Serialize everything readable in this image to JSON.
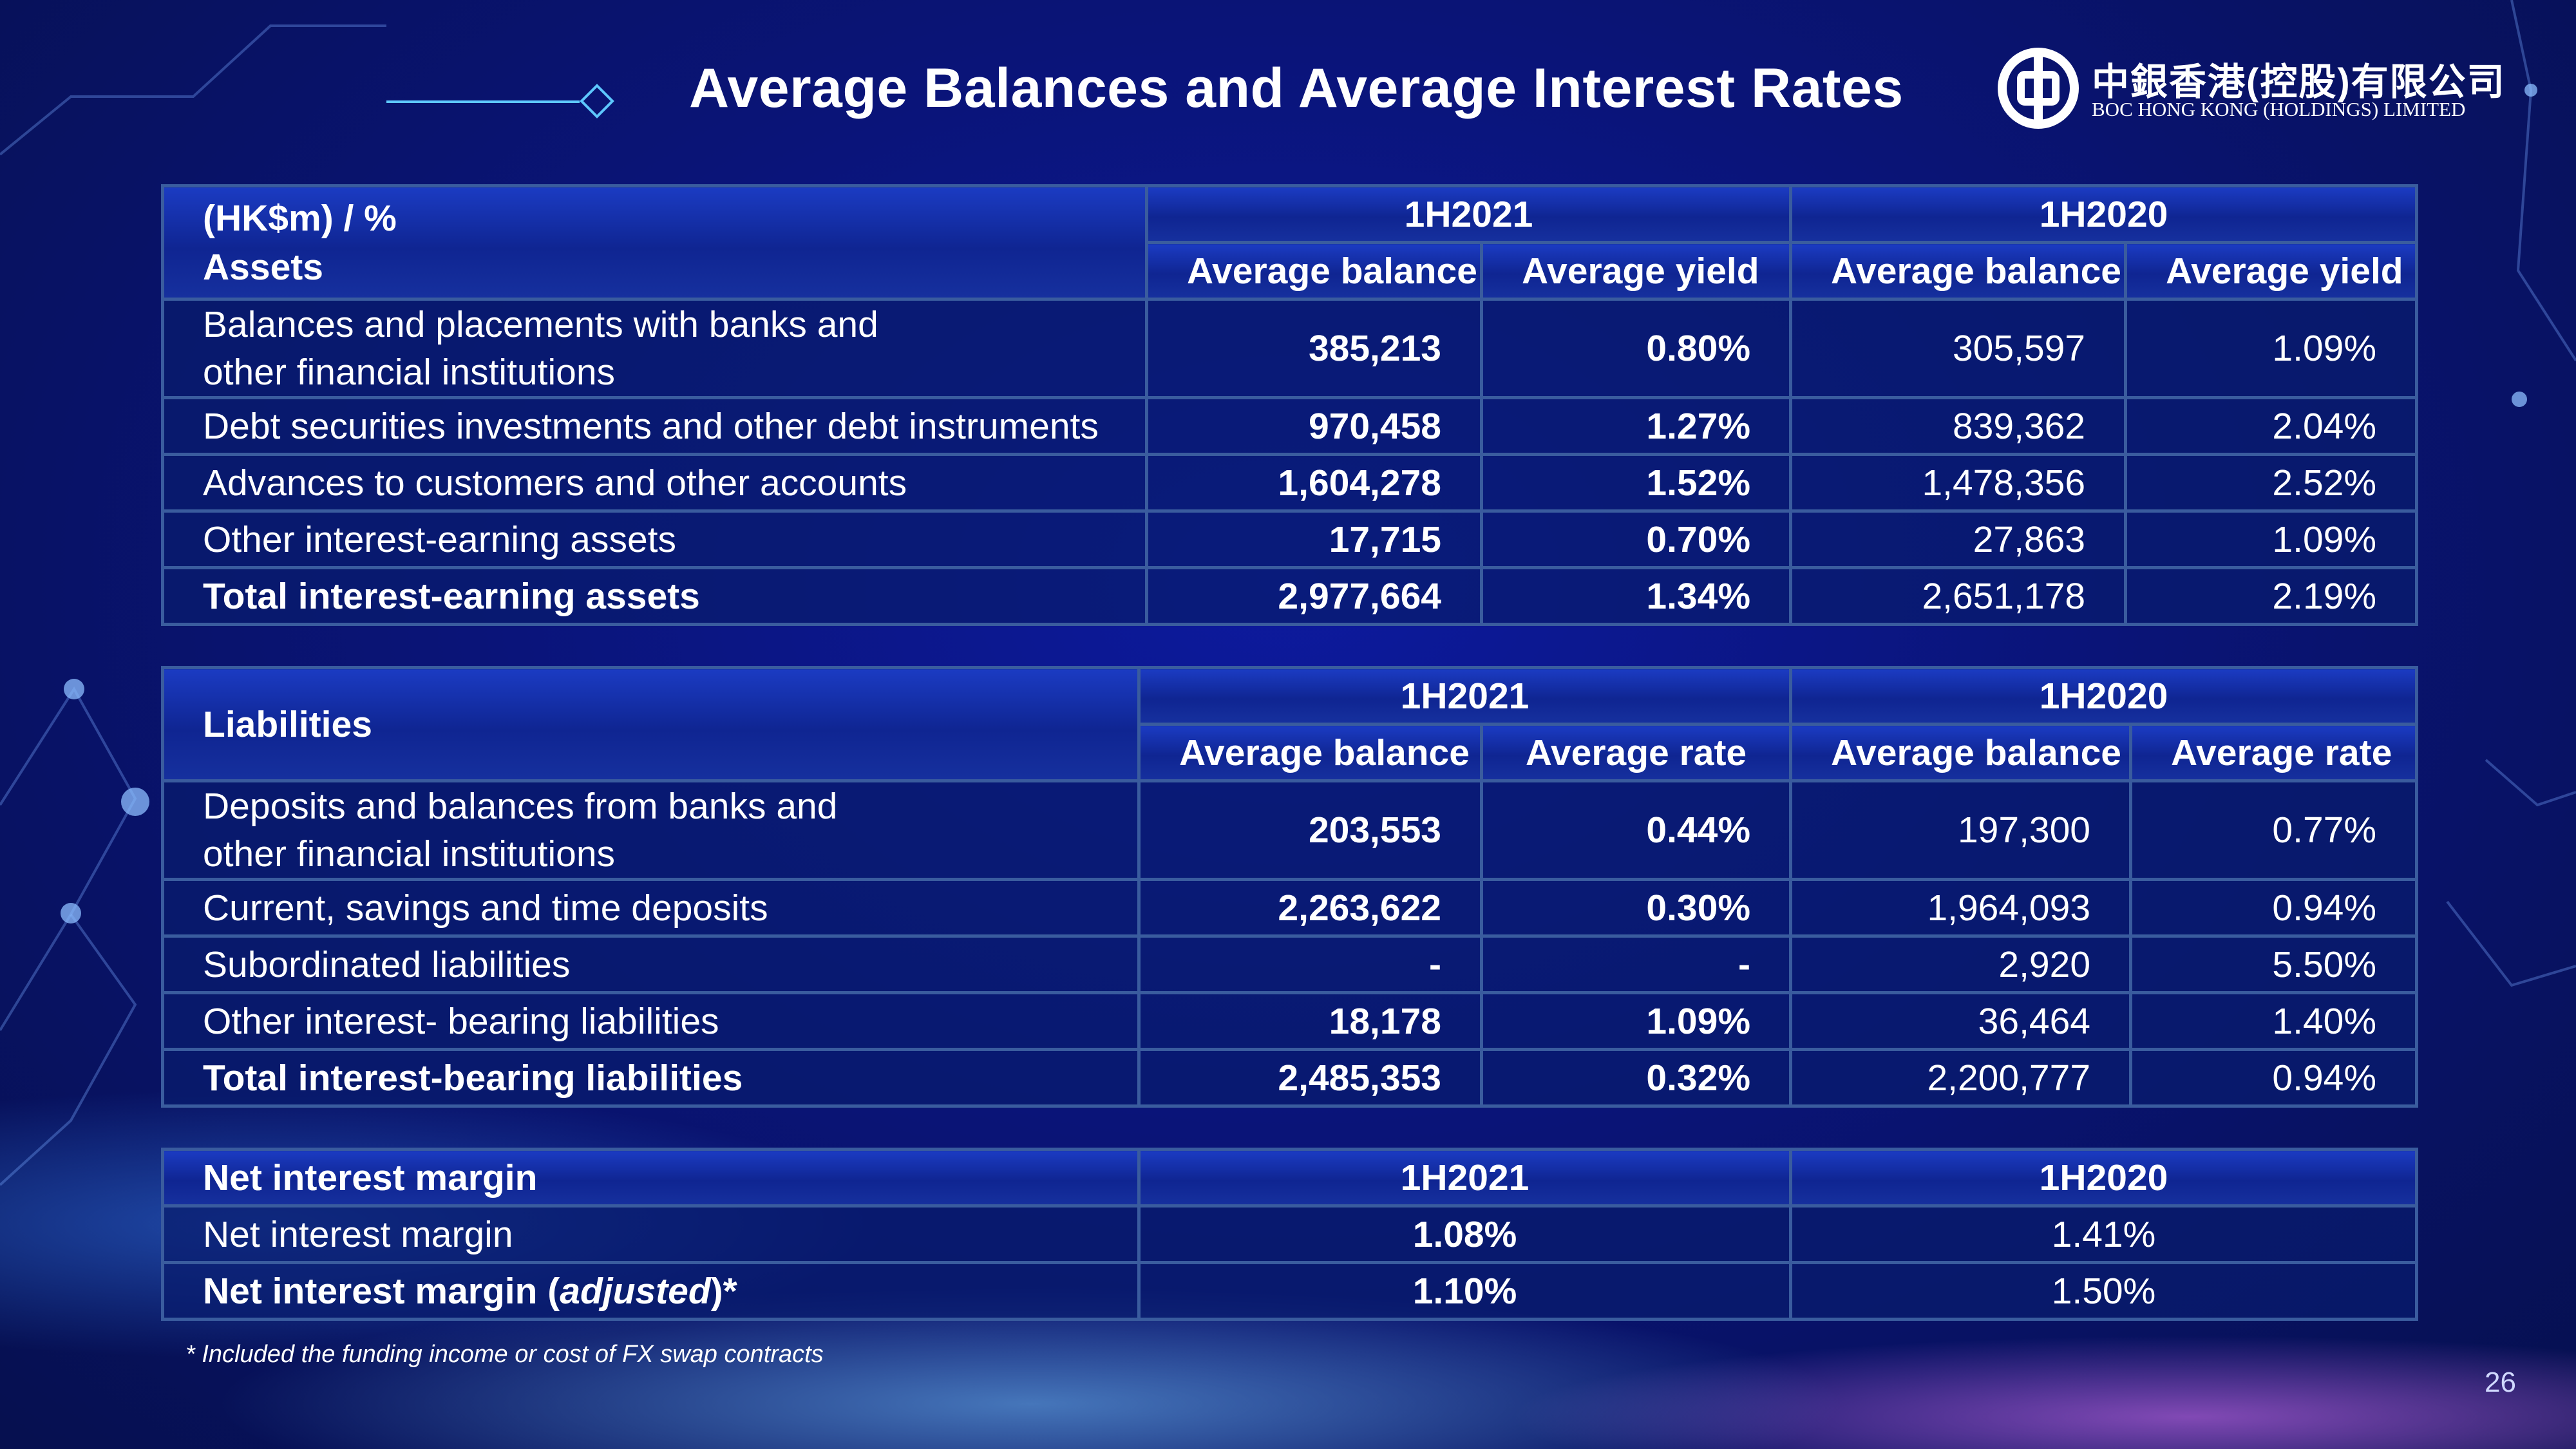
{
  "title": "Average Balances and Average Interest Rates",
  "logo": {
    "name": "中銀香港(控股)有限公司",
    "subtitle": "BOC HONG KONG (HOLDINGS) LIMITED"
  },
  "assets": {
    "header_line1": "(HK$m) / %",
    "header_line2": "Assets",
    "period_1": "1H2021",
    "period_2": "1H2020",
    "col_balance": "Average balance",
    "col_rate": "Average yield",
    "rows": [
      {
        "label_1": "Balances and placements with banks and",
        "label_2": "other financial institutions",
        "b1": "385,213",
        "r1": "0.80%",
        "b2": "305,597",
        "r2": "1.09%"
      },
      {
        "label": "Debt securities investments and other debt instruments",
        "b1": "970,458",
        "r1": "1.27%",
        "b2": "839,362",
        "r2": "2.04%"
      },
      {
        "label": "Advances to customers and other accounts",
        "b1": "1,604,278",
        "r1": "1.52%",
        "b2": "1,478,356",
        "r2": "2.52%"
      },
      {
        "label": "Other interest-earning assets",
        "b1": "17,715",
        "r1": "0.70%",
        "b2": "27,863",
        "r2": "1.09%"
      },
      {
        "label": "Total interest-earning assets",
        "b1": "2,977,664",
        "r1": "1.34%",
        "b2": "2,651,178",
        "r2": "2.19%"
      }
    ]
  },
  "liabilities": {
    "header": "Liabilities",
    "period_1": "1H2021",
    "period_2": "1H2020",
    "col_balance": "Average balance",
    "col_rate": "Average rate",
    "rows": [
      {
        "label_1": "Deposits and balances from banks and",
        "label_2": "other financial institutions",
        "b1": "203,553",
        "r1": "0.44%",
        "b2": "197,300",
        "r2": "0.77%"
      },
      {
        "label": "Current, savings and time deposits",
        "b1": "2,263,622",
        "r1": "0.30%",
        "b2": "1,964,093",
        "r2": "0.94%"
      },
      {
        "label": "Subordinated liabilities",
        "b1": "-",
        "r1": "-",
        "b2": "2,920",
        "r2": "5.50%"
      },
      {
        "label": "Other interest- bearing liabilities",
        "b1": "18,178",
        "r1": "1.09%",
        "b2": "36,464",
        "r2": "1.40%"
      },
      {
        "label": "Total interest-bearing liabilities",
        "b1": "2,485,353",
        "r1": "0.32%",
        "b2": "2,200,777",
        "r2": "0.94%"
      }
    ]
  },
  "nim": {
    "header": "Net interest margin",
    "period_1": "1H2021",
    "period_2": "1H2020",
    "rows": [
      {
        "label": "Net interest margin",
        "v1": "1.08%",
        "v2": "1.41%"
      },
      {
        "label_prefix": "Net interest margin (",
        "label_italic": "adjusted",
        "label_suffix": ")*",
        "v1": "1.10%",
        "v2": "1.50%"
      }
    ]
  },
  "footnote": "* Included the funding income or cost of FX swap contracts",
  "page_number": "26"
}
